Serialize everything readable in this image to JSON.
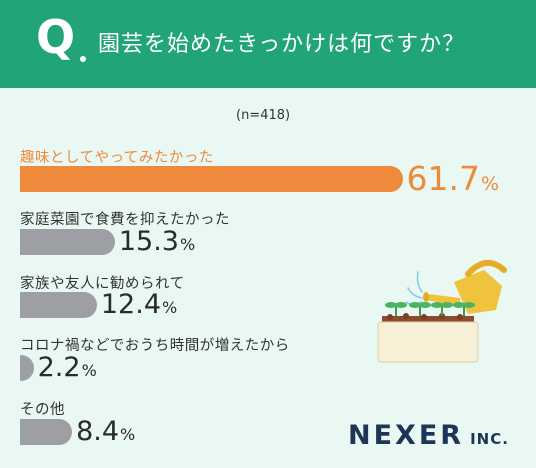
{
  "header": {
    "q_mark": "Q",
    "question": "園芸を始めたきっかけは何ですか？"
  },
  "sample": "(n=418)",
  "chart_data": {
    "type": "bar",
    "orientation": "horizontal",
    "title": "園芸を始めたきっかけは何ですか？",
    "categories": [
      "趣味としてやってみたかった",
      "家庭菜園で食費を抑えたかった",
      "家族や友人に勧められて",
      "コロナ禍などでおうち時間が増えたから",
      "その他"
    ],
    "values": [
      61.7,
      15.3,
      12.4,
      2.2,
      8.4
    ],
    "value_labels": [
      "61.7",
      "15.3",
      "12.4",
      "2.2",
      "8.4"
    ],
    "unit": "%",
    "xlim": [
      0,
      100
    ],
    "highlight_index": 0,
    "colors": {
      "highlight": "#ef8a3c",
      "default": "#9d9fa5",
      "header": "#22a47a",
      "background": "#e9f8f2"
    }
  },
  "illustration": "watering-can-seedlings",
  "logo": {
    "main": "NEXER",
    "sub": "INC."
  }
}
